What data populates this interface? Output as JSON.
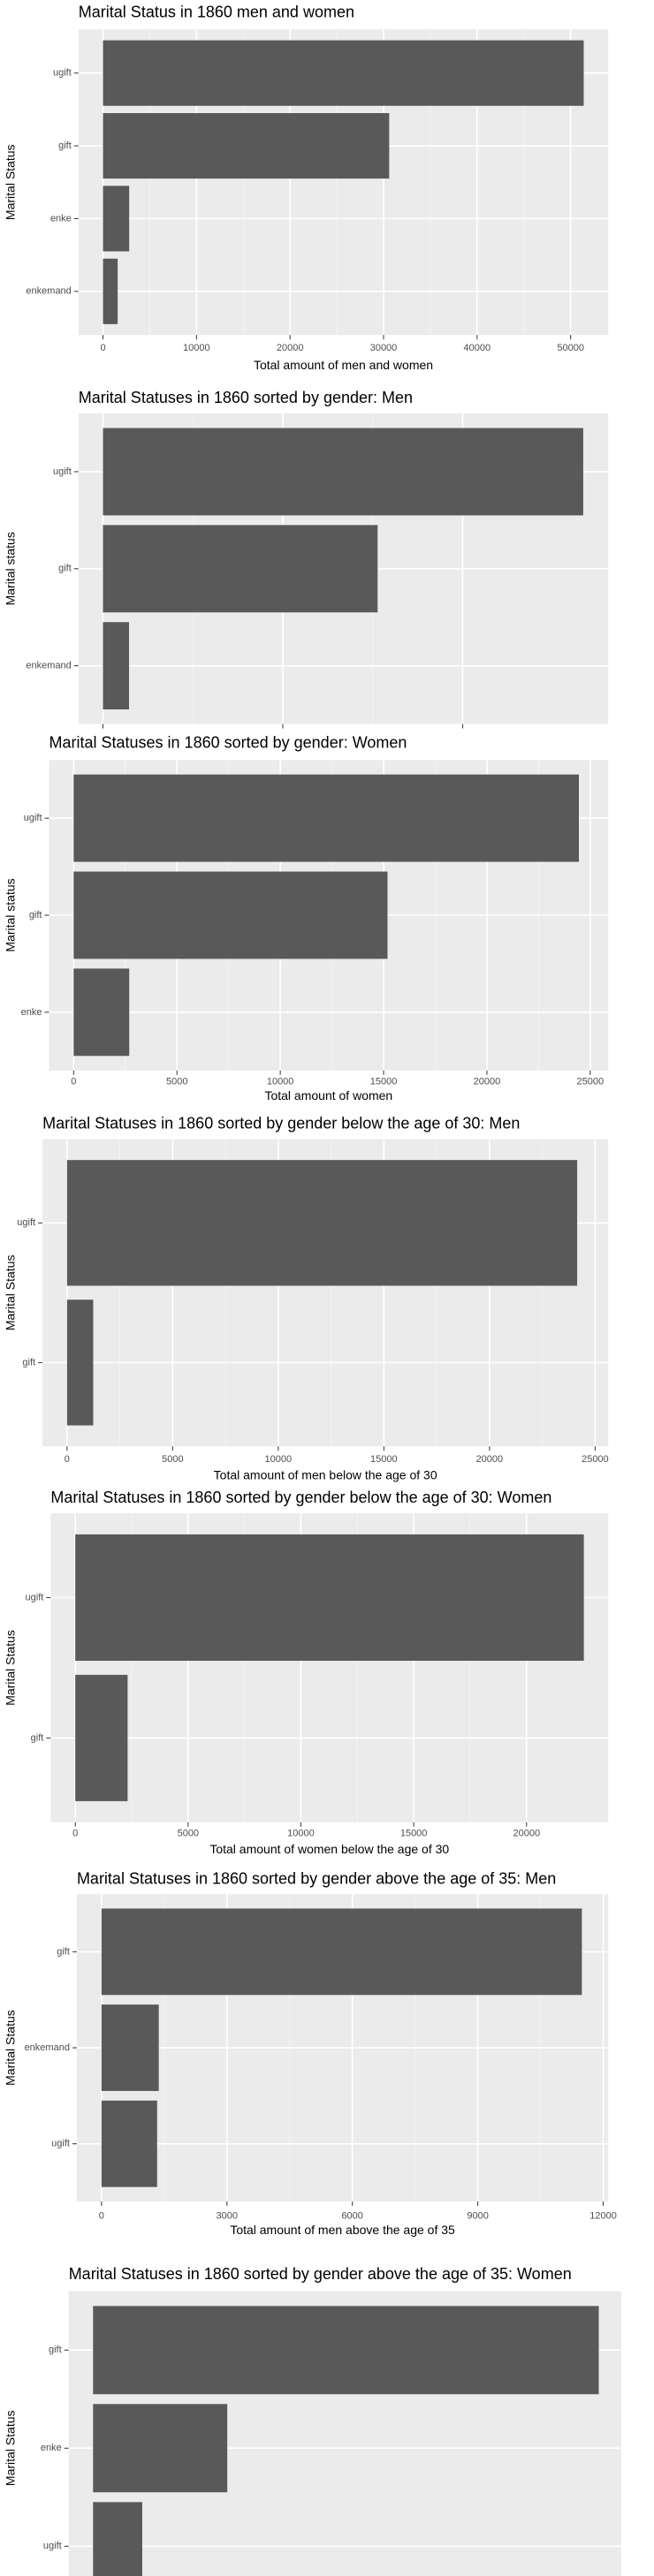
{
  "chart_data": [
    {
      "type": "barh",
      "title": "Marital Status in 1860 men and women",
      "categories": [
        "ugift",
        "gift",
        "enke",
        "enkemand"
      ],
      "values": [
        51400,
        30600,
        2800,
        1570
      ],
      "color": "#595959",
      "xlim": [
        -2620,
        54020
      ],
      "xticks": [
        0,
        10000,
        20000,
        30000,
        40000,
        50000
      ],
      "xlabel": "Total amount of men and women",
      "ylabel": "Marital Status",
      "grid": true
    },
    {
      "type": "barh",
      "title": "Marital Statuses in 1860 sorted by gender: Men",
      "categories": [
        "ugift",
        "gift",
        "enkemand"
      ],
      "values": [
        26700,
        15270,
        1450
      ],
      "color": "#595959",
      "xlim": [
        -1360,
        28090
      ],
      "xticks": [
        0,
        10000,
        20000
      ],
      "ylabel": "Marital status",
      "grid": true
    },
    {
      "type": "barh",
      "title": "Marital Statuses in 1860 sorted by gender: Women",
      "categories": [
        "ugift",
        "gift",
        "enke"
      ],
      "values": [
        24450,
        15190,
        2690
      ],
      "color": "#595959",
      "xlim": [
        -1190,
        25870
      ],
      "xticks": [
        0,
        5000,
        10000,
        15000,
        20000,
        25000
      ],
      "xlabel": "Total amount of women",
      "ylabel": "Marital status",
      "grid": true
    },
    {
      "type": "barh",
      "title": "Marital Statuses in 1860 sorted by gender below the age of 30: Men",
      "categories": [
        "ugift",
        "gift"
      ],
      "values": [
        24150,
        1240
      ],
      "color": "#595959",
      "xlim": [
        -1160,
        25620
      ],
      "xticks": [
        0,
        5000,
        10000,
        15000,
        20000,
        25000
      ],
      "xlabel": "Total amount of men below the age of 30",
      "ylabel": "Marital Status",
      "grid": true
    },
    {
      "type": "barh",
      "title": "Marital Statuses in 1860 sorted by gender below the age of 30: Women",
      "categories": [
        "ugift",
        "gift"
      ],
      "values": [
        22540,
        2320
      ],
      "color": "#595959",
      "xlim": [
        -1090,
        23620
      ],
      "xticks": [
        0,
        5000,
        10000,
        15000,
        20000
      ],
      "xlabel": "Total amount of women below the age of 30",
      "ylabel": "Marital Status",
      "grid": true
    },
    {
      "type": "barh",
      "title": "Marital Statuses in 1860 sorted by gender above the age of 35: Men",
      "categories": [
        "gift",
        "enkemand",
        "ugift"
      ],
      "values": [
        11490,
        1370,
        1330
      ],
      "color": "#595959",
      "xlim": [
        -590,
        12120
      ],
      "xticks": [
        0,
        3000,
        6000,
        9000,
        12000
      ],
      "xlabel": "Total amount of men above the age of 35",
      "ylabel": "Marital Status",
      "grid": true
    },
    {
      "type": "barh",
      "title": "Marital Statuses in 1860 sorted by gender above the age of 35: Women",
      "categories": [
        "gift",
        "enke",
        "ugift"
      ],
      "values": [
        11000,
        2920,
        1070
      ],
      "color": "#595959",
      "xlim": [
        -530,
        11490
      ],
      "ylabel": "Marital Status",
      "grid": true
    }
  ]
}
